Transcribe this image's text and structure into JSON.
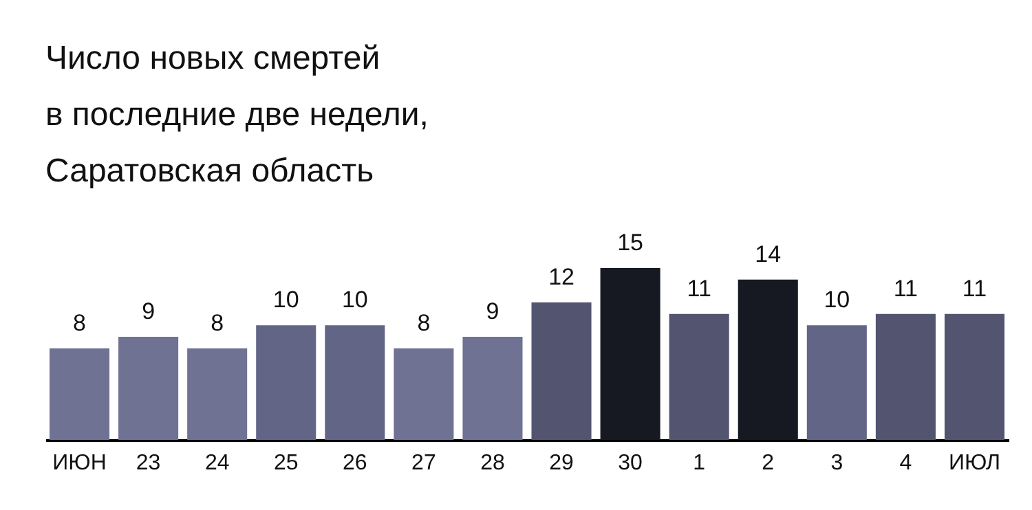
{
  "chart_data": {
    "type": "bar",
    "title": "Число новых смертей\nв последние две недели,\nСаратовская область",
    "categories": [
      "ИЮН",
      "23",
      "24",
      "25",
      "26",
      "27",
      "28",
      "29",
      "30",
      "1",
      "2",
      "3",
      "4",
      "ИЮЛ"
    ],
    "values": [
      8,
      9,
      8,
      10,
      10,
      8,
      9,
      12,
      15,
      11,
      14,
      10,
      11,
      11
    ],
    "colors": [
      "#6f7292",
      "#6f7292",
      "#6f7292",
      "#626585",
      "#626585",
      "#6f7292",
      "#6f7292",
      "#525470",
      "#161822",
      "#525470",
      "#161822",
      "#626585",
      "#525470",
      "#525470"
    ],
    "data_labels": true
  }
}
